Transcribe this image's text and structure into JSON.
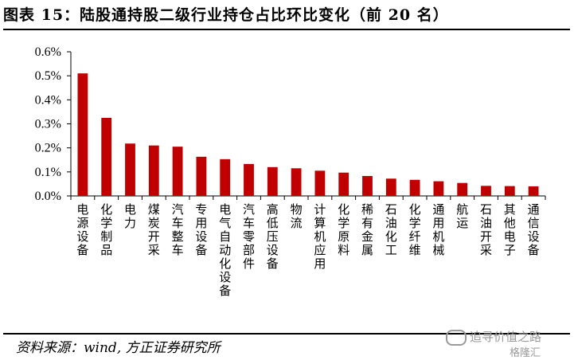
{
  "title": "图表 15：陆股通持股二级行业持仓占比环比变化（前 20 名）",
  "source": "资料来源：wind, 方正证券研究所",
  "watermark": "追寻价值之路",
  "brand": "格隆汇",
  "chart_data": {
    "type": "bar",
    "categories": [
      "电源设备",
      "化学制品",
      "电力",
      "煤炭开采",
      "汽车整车",
      "专用设备",
      "电气自动化设备",
      "汽车零部件",
      "高低压设备",
      "物流",
      "计算机应用",
      "化学原料",
      "稀有金属",
      "石油化工",
      "化学纤维",
      "通用机械",
      "航运",
      "石油开采",
      "其他电子",
      "通信设备"
    ],
    "values": [
      0.51,
      0.325,
      0.218,
      0.21,
      0.205,
      0.163,
      0.153,
      0.133,
      0.12,
      0.115,
      0.105,
      0.097,
      0.083,
      0.072,
      0.067,
      0.061,
      0.054,
      0.042,
      0.041,
      0.04
    ],
    "ylim": [
      0,
      0.6
    ],
    "yticks": [
      "0.0%",
      "0.1%",
      "0.2%",
      "0.3%",
      "0.4%",
      "0.5%",
      "0.6%"
    ],
    "ytick_values": [
      0,
      0.1,
      0.2,
      0.3,
      0.4,
      0.5,
      0.6
    ],
    "bar_color": "#c00000",
    "grid": false
  }
}
